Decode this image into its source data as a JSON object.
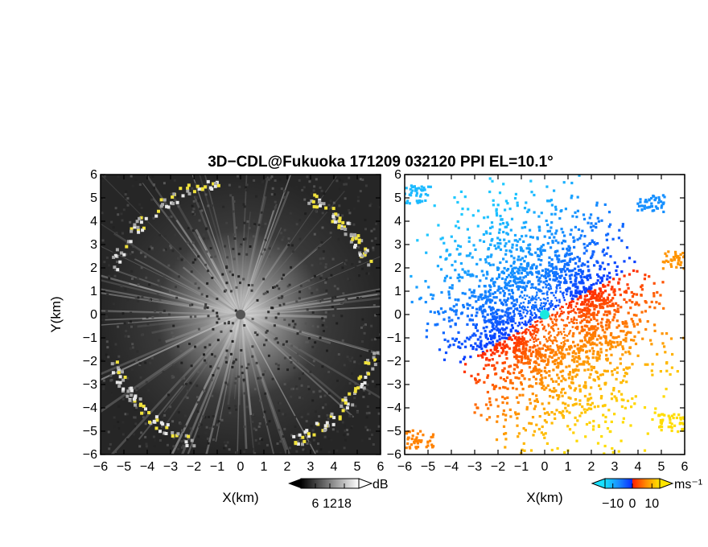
{
  "chart_data": {
    "title": "3D−CDL@Fukuoka 171209 032120 PPI EL=10.1°",
    "type": "heatmap",
    "panels": [
      {
        "name": "backscatter",
        "xlabel": "X(km)",
        "ylabel": "Y(km)",
        "xlim": [
          -6,
          6
        ],
        "ylim": [
          -6,
          6
        ],
        "xticks": [
          "−6",
          "−5",
          "−4",
          "−3",
          "−2",
          "−1",
          "0",
          "1",
          "2",
          "3",
          "4",
          "5",
          "6"
        ],
        "yticks": [
          "−6",
          "−5",
          "−4",
          "−3",
          "−2",
          "−1",
          "0",
          "1",
          "2",
          "3",
          "4",
          "5",
          "6"
        ],
        "colorbar": {
          "unit": "dB",
          "ticks": [
            "6",
            "12",
            "18"
          ],
          "tick_values": [
            6,
            12,
            18
          ],
          "range": [
            0,
            24
          ],
          "colormap": "grayscale"
        },
        "colors": {
          "background": "#2a2a2a",
          "center": "#d8d8d8",
          "edge_hi": "#f0e23c"
        }
      },
      {
        "name": "doppler_velocity",
        "xlabel": "X(km)",
        "xlim": [
          -6,
          6
        ],
        "ylim": [
          -6,
          6
        ],
        "xticks": [
          "−6",
          "−5",
          "−4",
          "−3",
          "−2",
          "−1",
          "0",
          "1",
          "2",
          "3",
          "4",
          "5",
          "6"
        ],
        "yticks": [
          "−6",
          "−5",
          "−4",
          "−3",
          "−2",
          "−1",
          "0",
          "1",
          "2",
          "3",
          "4",
          "5",
          "6"
        ],
        "colorbar": {
          "unit": "ms⁻¹",
          "ticks": [
            "−10",
            "0",
            "10"
          ],
          "tick_values": [
            -10,
            0,
            10
          ],
          "range": [
            -14,
            14
          ],
          "colormap": "cyan-blue-red-yellow"
        },
        "wind_direction_deg": 300,
        "colors": {
          "neg_far": "#1ec8ff",
          "neg_near": "#0a3cff",
          "pos_near": "#ff3a00",
          "pos_far": "#ffd400"
        }
      }
    ]
  }
}
